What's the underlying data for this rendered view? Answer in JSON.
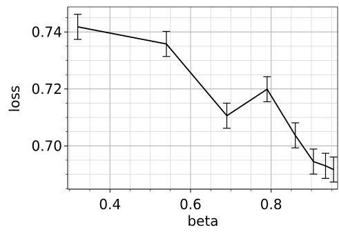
{
  "chart_data": {
    "type": "line",
    "title": "",
    "xlabel": "beta",
    "ylabel": "loss",
    "xlim": [
      0.295,
      0.965
    ],
    "ylim": [
      0.6848,
      0.7488
    ],
    "xticks": [
      0.4,
      0.6,
      0.8
    ],
    "xtick_labels": [
      "0.4",
      "0.6",
      "0.8"
    ],
    "yticks": [
      0.7,
      0.72,
      0.74
    ],
    "ytick_labels": [
      "0.70",
      "0.72",
      "0.74"
    ],
    "x_minor_step": 0.05,
    "y_minor_step": 0.005,
    "grid": true,
    "series": [
      {
        "x": [
          0.32,
          0.54,
          0.69,
          0.79,
          0.86,
          0.905,
          0.935,
          0.955
        ],
        "y": [
          0.7418,
          0.7358,
          0.7106,
          0.7199,
          0.7037,
          0.6945,
          0.693,
          0.6917
        ],
        "error": [
          0.0044,
          0.0044,
          0.0044,
          0.0044,
          0.0044,
          0.0044,
          0.0044,
          0.0044
        ],
        "color": "#000000"
      }
    ]
  }
}
